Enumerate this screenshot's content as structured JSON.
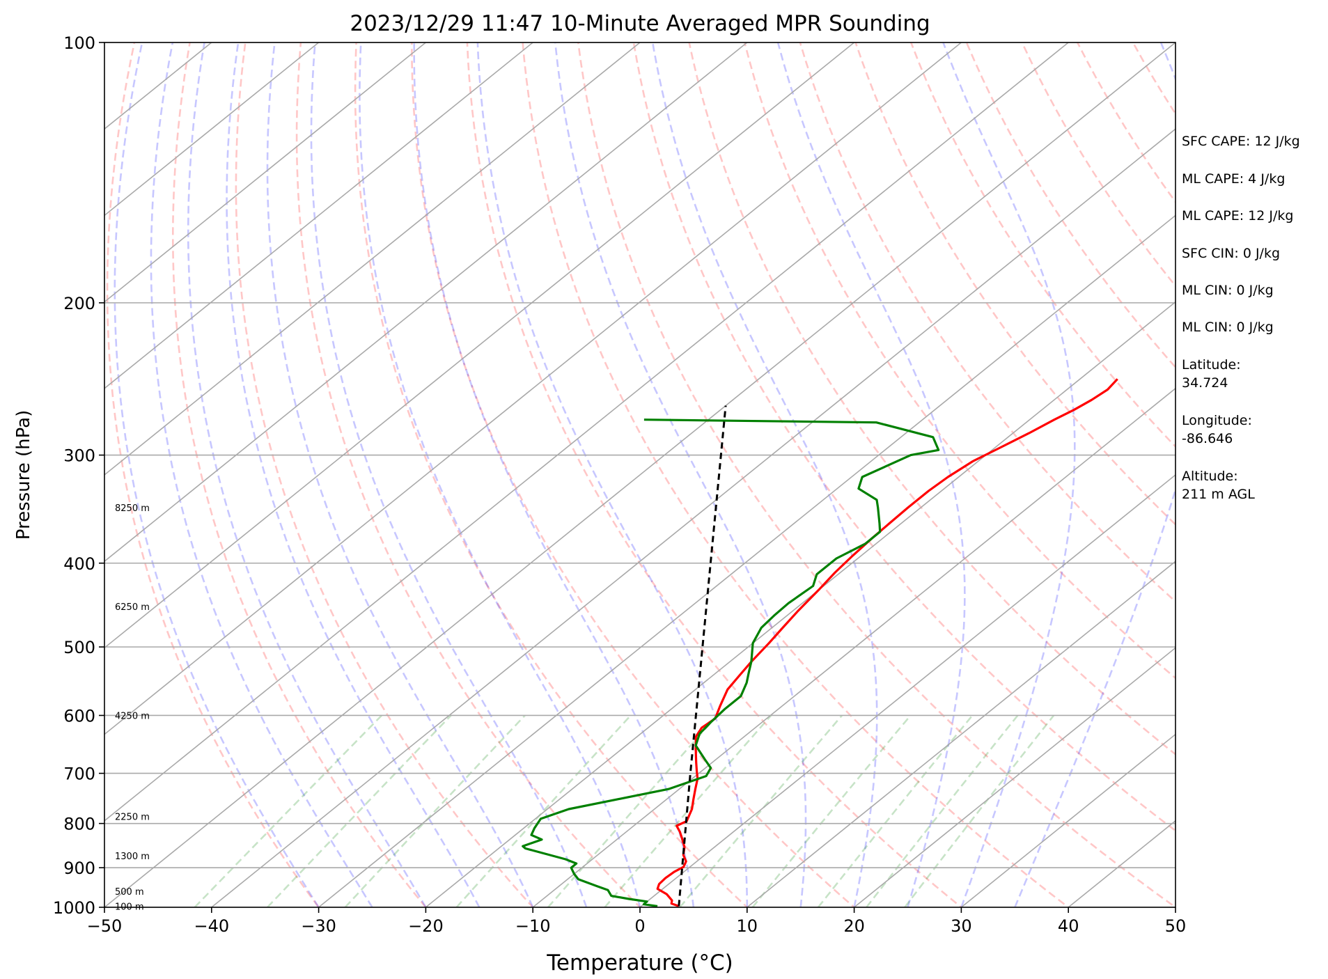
{
  "chart_data": {
    "type": "line",
    "title": "2023/12/29 11:47 10-Minute Averaged MPR Sounding",
    "xlabel": "Temperature (°C)",
    "ylabel": "Pressure (hPa)",
    "xlim": [
      -50,
      50
    ],
    "ylim": [
      1000,
      100
    ],
    "y_scale": "log",
    "skew": "skew-T log-p",
    "grid": true,
    "x_ticks": [
      "−50",
      "−40",
      "−30",
      "−20",
      "−10",
      "0",
      "10",
      "20",
      "30",
      "40",
      "50"
    ],
    "y_ticks": [
      "100",
      "200",
      "300",
      "400",
      "500",
      "600",
      "700",
      "800",
      "900",
      "1000"
    ],
    "height_labels": [
      {
        "p": 345,
        "text": "8250 m"
      },
      {
        "p": 449,
        "text": "6250 m"
      },
      {
        "p": 600,
        "text": "4250 m"
      },
      {
        "p": 785,
        "text": "2250 m"
      },
      {
        "p": 872,
        "text": "1300 m"
      },
      {
        "p": 958,
        "text": "500 m"
      },
      {
        "p": 997,
        "text": "100 m"
      }
    ],
    "series": [
      {
        "key": "temperature",
        "color": "#ff0000",
        "points": [
          [
            3.5,
            997
          ],
          [
            2.5,
            990
          ],
          [
            2.2,
            982
          ],
          [
            1.0,
            966
          ],
          [
            -0.5,
            952
          ],
          [
            -0.9,
            940
          ],
          [
            -1.0,
            925
          ],
          [
            -0.9,
            910
          ],
          [
            -0.6,
            898
          ],
          [
            -1.0,
            885
          ],
          [
            -2.0,
            870
          ],
          [
            -2.8,
            852
          ],
          [
            -4.0,
            833
          ],
          [
            -5.0,
            818
          ],
          [
            -6.0,
            805
          ],
          [
            -5.6,
            795
          ],
          [
            -6.5,
            770
          ],
          [
            -7.5,
            750
          ],
          [
            -8.5,
            730
          ],
          [
            -9.5,
            710
          ],
          [
            -10.5,
            695
          ],
          [
            -11.5,
            680
          ],
          [
            -12.5,
            665
          ],
          [
            -13.5,
            650
          ],
          [
            -14.5,
            635
          ],
          [
            -15.0,
            620
          ],
          [
            -14.8,
            605
          ],
          [
            -15.8,
            585
          ],
          [
            -17.0,
            560
          ],
          [
            -17.5,
            540
          ],
          [
            -18.0,
            520
          ],
          [
            -18.5,
            495
          ],
          [
            -19.0,
            475
          ],
          [
            -19.5,
            455
          ],
          [
            -20.0,
            430
          ],
          [
            -20.5,
            410
          ],
          [
            -20.8,
            392
          ],
          [
            -21.0,
            375
          ],
          [
            -21.1,
            360
          ],
          [
            -21.2,
            345
          ],
          [
            -21.2,
            330
          ],
          [
            -21.0,
            318
          ],
          [
            -20.5,
            305
          ],
          [
            -19.6,
            295
          ],
          [
            -18.5,
            283
          ],
          [
            -17.7,
            273
          ],
          [
            -17.0,
            266
          ],
          [
            -16.5,
            259
          ],
          [
            -16.2,
            252
          ],
          [
            -16.5,
            245
          ]
        ]
      },
      {
        "key": "dewpoint",
        "color": "#008000",
        "points": [
          [
            1.5,
            997
          ],
          [
            0,
            992
          ],
          [
            0,
            985
          ],
          [
            -2,
            978
          ],
          [
            -4,
            970
          ],
          [
            -5,
            955
          ],
          [
            -6.5,
            945
          ],
          [
            -9,
            928
          ],
          [
            -10,
            915
          ],
          [
            -11,
            900
          ],
          [
            -11,
            890
          ],
          [
            -12.5,
            880
          ],
          [
            -17.5,
            855
          ],
          [
            -18,
            850
          ],
          [
            -17,
            835
          ],
          [
            -18.5,
            825
          ],
          [
            -19,
            810
          ],
          [
            -19.5,
            790
          ],
          [
            -18,
            770
          ],
          [
            -11,
            730
          ],
          [
            -9,
            705
          ],
          [
            -9.5,
            690
          ],
          [
            -11,
            675
          ],
          [
            -13.5,
            650
          ],
          [
            -14.5,
            630
          ],
          [
            -14.8,
            610
          ],
          [
            -15,
            590
          ],
          [
            -15,
            570
          ],
          [
            -16,
            550
          ],
          [
            -17,
            535
          ],
          [
            -18,
            520
          ],
          [
            -20,
            495
          ],
          [
            -21,
            475
          ],
          [
            -21.2,
            460
          ],
          [
            -21.3,
            445
          ],
          [
            -21,
            425
          ],
          [
            -22,
            412
          ],
          [
            -22,
            395
          ],
          [
            -21,
            380
          ],
          [
            -21,
            368
          ],
          [
            -22,
            360
          ],
          [
            -24,
            345
          ],
          [
            -25,
            338
          ],
          [
            -28,
            328
          ],
          [
            -29,
            318
          ],
          [
            -27,
            300
          ],
          [
            -25,
            296
          ],
          [
            -27,
            286
          ],
          [
            -34,
            275
          ],
          [
            -56,
            273
          ]
        ]
      },
      {
        "key": "parcel",
        "color": "#000000",
        "points": [
          [
            3.5,
            997
          ],
          [
            -10.5,
            705
          ],
          [
            -50,
            263
          ]
        ]
      }
    ],
    "info": {
      "sfc_cape": "SFC CAPE: 12 J/kg",
      "ml_cape_1": "ML CAPE: 4 J/kg",
      "ml_cape_2": "ML CAPE: 12 J/kg",
      "sfc_cin": "SFC CIN: 0 J/kg",
      "ml_cin_1": "ML CIN: 0 J/kg",
      "ml_cin_2": "ML CIN: 0 J/kg",
      "latitude_label": "Latitude:",
      "latitude_value": "34.724",
      "longitude_label": "Longitude:",
      "longitude_value": "-86.646",
      "altitude_label": "Altitude:",
      "altitude_value": "211 m AGL"
    }
  }
}
